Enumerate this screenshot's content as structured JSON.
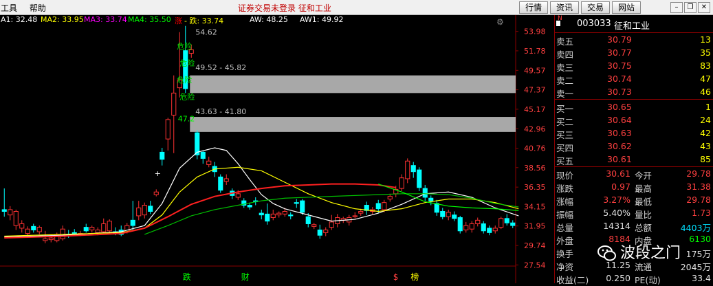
{
  "menu": [
    "工具",
    "帮助"
  ],
  "title": "证券交易未登录  征和工业",
  "buttons": [
    "行情",
    "资讯",
    "交易",
    "网站"
  ],
  "window_controls": [
    "minimize-icon",
    "restore-icon",
    "close-icon"
  ],
  "indicators": [
    {
      "text": "A1: 32.48",
      "color": "#ffffff"
    },
    {
      "text": "MA2: 33.95",
      "color": "#ffff00"
    },
    {
      "text": "MA3: 33.74",
      "color": "#ff00ff"
    },
    {
      "text": "MA4: 35.50",
      "color": "#00ff00"
    },
    {
      "text": "涨",
      "color": "#ff0000"
    },
    {
      "text": "- 跌: 33.74",
      "color": "#ffff00"
    },
    {
      "text": "AW: 48.25",
      "color": "#ffffff"
    },
    {
      "text": "AW1: 49.92",
      "color": "#ffffff"
    }
  ],
  "chart_data": {
    "type": "candlestick",
    "y_ticks": [
      53.98,
      51.78,
      49.57,
      47.37,
      45.17,
      42.96,
      40.76,
      38.56,
      36.35,
      34.15,
      31.95,
      29.74,
      27.54
    ],
    "ylim": [
      26.4,
      55.2
    ],
    "candles": [
      {
        "o": 33.8,
        "c": 33.6,
        "h": 36.2,
        "l": 33.0
      },
      {
        "o": 33.2,
        "c": 33.8,
        "h": 34.2,
        "l": 32.6
      },
      {
        "o": 32.0,
        "c": 33.6,
        "h": 33.8,
        "l": 31.5
      },
      {
        "o": 31.7,
        "c": 32.2,
        "h": 32.6,
        "l": 31.2
      },
      {
        "o": 31.1,
        "c": 31.6,
        "h": 31.9,
        "l": 30.6
      },
      {
        "o": 31.9,
        "c": 31.5,
        "h": 32.2,
        "l": 31.2
      },
      {
        "o": 31.3,
        "c": 31.8,
        "h": 32.0,
        "l": 31.0
      },
      {
        "o": 30.3,
        "c": 30.5,
        "h": 31.4,
        "l": 30.0
      },
      {
        "o": 30.4,
        "c": 30.6,
        "h": 31.0,
        "l": 30.1
      },
      {
        "o": 30.3,
        "c": 31.0,
        "h": 31.2,
        "l": 30.1
      },
      {
        "o": 30.5,
        "c": 31.6,
        "h": 32.0,
        "l": 30.3
      },
      {
        "o": 31.0,
        "c": 30.9,
        "h": 31.5,
        "l": 30.6
      },
      {
        "o": 31.2,
        "c": 31.0,
        "h": 31.6,
        "l": 30.9
      },
      {
        "o": 31.0,
        "c": 31.1,
        "h": 31.4,
        "l": 30.8
      },
      {
        "o": 31.8,
        "c": 31.4,
        "h": 32.2,
        "l": 31.2
      },
      {
        "o": 31.5,
        "c": 31.8,
        "h": 32.0,
        "l": 31.2
      },
      {
        "o": 31.2,
        "c": 31.5,
        "h": 31.8,
        "l": 30.9
      },
      {
        "o": 31.3,
        "c": 32.2,
        "h": 32.8,
        "l": 31.2
      },
      {
        "o": 31.4,
        "c": 32.5,
        "h": 32.7,
        "l": 31.1
      },
      {
        "o": 31.3,
        "c": 31.1,
        "h": 31.8,
        "l": 30.9
      },
      {
        "o": 31.5,
        "c": 31.0,
        "h": 32.0,
        "l": 30.8
      },
      {
        "o": 31.3,
        "c": 32.0,
        "h": 32.3,
        "l": 31.1
      },
      {
        "o": 32.6,
        "c": 32.0,
        "h": 34.8,
        "l": 31.4
      },
      {
        "o": 33.1,
        "c": 34.0,
        "h": 34.8,
        "l": 32.6
      },
      {
        "o": 33.2,
        "c": 34.3,
        "h": 34.6,
        "l": 32.8
      },
      {
        "o": 34.2,
        "c": 33.6,
        "h": 34.8,
        "l": 33.3
      },
      {
        "o": 35.5,
        "c": 35.8,
        "h": 36.1,
        "l": 35.3
      },
      {
        "o": 40.3,
        "c": 39.5,
        "h": 40.8,
        "l": 38.8
      },
      {
        "o": 41.8,
        "c": 44.0,
        "h": 44.2,
        "l": 40.5
      },
      {
        "o": 44.5,
        "c": 47.0,
        "h": 49.0,
        "l": 40.2
      },
      {
        "o": 47.6,
        "c": 48.5,
        "h": 53.9,
        "l": 46.5
      },
      {
        "o": 51.8,
        "c": 47.5,
        "h": 54.6,
        "l": 47.0
      },
      {
        "o": 51.5,
        "c": 51.9,
        "h": 52.5,
        "l": 51.0
      },
      {
        "o": 42.5,
        "c": 40.0,
        "h": 42.8,
        "l": 39.5
      },
      {
        "o": 40.3,
        "c": 39.6,
        "h": 40.5,
        "l": 39.0
      },
      {
        "o": 38.9,
        "c": 39.3,
        "h": 39.8,
        "l": 38.6
      },
      {
        "o": 38.7,
        "c": 38.1,
        "h": 39.2,
        "l": 37.5
      },
      {
        "o": 37.5,
        "c": 36.0,
        "h": 37.8,
        "l": 35.7
      },
      {
        "o": 37.0,
        "c": 37.3,
        "h": 37.8,
        "l": 36.6
      },
      {
        "o": 35.9,
        "c": 35.4,
        "h": 36.2,
        "l": 35.0
      },
      {
        "o": 35.2,
        "c": 35.6,
        "h": 36.0,
        "l": 34.9
      },
      {
        "o": 34.8,
        "c": 34.3,
        "h": 35.1,
        "l": 34.0
      },
      {
        "o": 34.3,
        "c": 34.1,
        "h": 34.6,
        "l": 33.8
      },
      {
        "o": 34.8,
        "c": 34.7,
        "h": 35.2,
        "l": 34.3
      },
      {
        "o": 33.4,
        "c": 33.2,
        "h": 33.8,
        "l": 32.7
      },
      {
        "o": 33.3,
        "c": 32.5,
        "h": 34.5,
        "l": 32.1
      },
      {
        "o": 32.9,
        "c": 33.3,
        "h": 33.8,
        "l": 32.6
      },
      {
        "o": 33.2,
        "c": 33.4,
        "h": 33.6,
        "l": 32.9
      },
      {
        "o": 33.3,
        "c": 33.6,
        "h": 34.0,
        "l": 33.0
      },
      {
        "o": 33.2,
        "c": 33.1,
        "h": 33.5,
        "l": 32.7
      },
      {
        "o": 34.6,
        "c": 34.5,
        "h": 35.0,
        "l": 34.0
      },
      {
        "o": 34.8,
        "c": 33.5,
        "h": 35.0,
        "l": 33.2
      },
      {
        "o": 33.0,
        "c": 32.2,
        "h": 33.4,
        "l": 31.8
      },
      {
        "o": 31.9,
        "c": 32.1,
        "h": 32.3,
        "l": 31.6
      },
      {
        "o": 31.5,
        "c": 30.9,
        "h": 32.1,
        "l": 30.5
      },
      {
        "o": 31.2,
        "c": 31.5,
        "h": 31.8,
        "l": 30.8
      },
      {
        "o": 31.8,
        "c": 32.4,
        "h": 33.2,
        "l": 31.5
      },
      {
        "o": 32.2,
        "c": 32.9,
        "h": 33.3,
        "l": 31.8
      },
      {
        "o": 32.6,
        "c": 32.8,
        "h": 33.0,
        "l": 32.3
      },
      {
        "o": 32.4,
        "c": 32.9,
        "h": 33.2,
        "l": 32.0
      },
      {
        "o": 33.0,
        "c": 33.1,
        "h": 33.5,
        "l": 32.8
      },
      {
        "o": 33.4,
        "c": 33.6,
        "h": 33.9,
        "l": 33.1
      },
      {
        "o": 34.3,
        "c": 33.7,
        "h": 34.7,
        "l": 33.2
      },
      {
        "o": 33.6,
        "c": 33.8,
        "h": 34.1,
        "l": 33.3
      },
      {
        "o": 34.5,
        "c": 33.9,
        "h": 34.9,
        "l": 33.4
      },
      {
        "o": 33.8,
        "c": 34.6,
        "h": 34.9,
        "l": 33.5
      },
      {
        "o": 35.0,
        "c": 35.3,
        "h": 35.6,
        "l": 34.7
      },
      {
        "o": 35.6,
        "c": 36.1,
        "h": 36.5,
        "l": 35.2
      },
      {
        "o": 36.2,
        "c": 37.4,
        "h": 37.8,
        "l": 35.9
      },
      {
        "o": 37.3,
        "c": 39.3,
        "h": 39.6,
        "l": 36.8
      },
      {
        "o": 38.8,
        "c": 38.1,
        "h": 39.2,
        "l": 37.4
      },
      {
        "o": 38.3,
        "c": 36.3,
        "h": 38.6,
        "l": 35.9
      },
      {
        "o": 36.2,
        "c": 35.2,
        "h": 36.6,
        "l": 34.8
      },
      {
        "o": 35.1,
        "c": 34.8,
        "h": 35.4,
        "l": 34.3
      },
      {
        "o": 34.5,
        "c": 33.5,
        "h": 34.9,
        "l": 33.1
      },
      {
        "o": 33.6,
        "c": 33.0,
        "h": 34.0,
        "l": 32.7
      },
      {
        "o": 33.0,
        "c": 33.5,
        "h": 33.8,
        "l": 32.6
      },
      {
        "o": 33.2,
        "c": 32.8,
        "h": 33.6,
        "l": 32.5
      },
      {
        "o": 32.9,
        "c": 31.4,
        "h": 33.1,
        "l": 31.1
      },
      {
        "o": 31.5,
        "c": 32.0,
        "h": 32.4,
        "l": 31.2
      },
      {
        "o": 31.6,
        "c": 32.2,
        "h": 32.5,
        "l": 31.2
      },
      {
        "o": 32.2,
        "c": 32.6,
        "h": 32.9,
        "l": 31.9
      },
      {
        "o": 32.2,
        "c": 31.4,
        "h": 32.5,
        "l": 31.1
      },
      {
        "o": 31.7,
        "c": 31.2,
        "h": 32.0,
        "l": 30.9
      },
      {
        "o": 31.4,
        "c": 31.7,
        "h": 32.0,
        "l": 31.1
      },
      {
        "o": 31.8,
        "c": 32.8,
        "h": 33.0,
        "l": 31.6
      },
      {
        "o": 32.8,
        "c": 32.3,
        "h": 33.3,
        "l": 32.0
      },
      {
        "o": 32.3,
        "c": 32.0,
        "h": 32.6,
        "l": 31.7
      }
    ],
    "series": [
      {
        "color": "#ffffff",
        "values": [
          [
            0,
            30.7
          ],
          [
            10,
            30.9
          ],
          [
            20,
            31.3
          ],
          [
            24,
            32.0
          ],
          [
            27,
            34.5
          ],
          [
            30,
            38.5
          ],
          [
            33,
            40.3
          ],
          [
            36,
            40.8
          ],
          [
            38,
            40.5
          ],
          [
            40,
            39.0
          ],
          [
            42,
            37.2
          ],
          [
            44,
            35.5
          ],
          [
            46,
            34.5
          ],
          [
            48,
            33.9
          ],
          [
            52,
            33.2
          ],
          [
            56,
            32.5
          ],
          [
            60,
            32.7
          ],
          [
            64,
            33.4
          ],
          [
            68,
            34.4
          ],
          [
            72,
            35.6
          ],
          [
            76,
            35.8
          ],
          [
            80,
            35.2
          ],
          [
            84,
            34.0
          ],
          [
            88,
            33.1
          ]
        ]
      },
      {
        "color": "#ffff00",
        "values": [
          [
            0,
            30.8
          ],
          [
            10,
            31.0
          ],
          [
            20,
            31.2
          ],
          [
            24,
            31.7
          ],
          [
            27,
            33.2
          ],
          [
            30,
            35.8
          ],
          [
            33,
            37.5
          ],
          [
            36,
            38.4
          ],
          [
            40,
            38.6
          ],
          [
            44,
            38.2
          ],
          [
            48,
            36.9
          ],
          [
            52,
            35.6
          ],
          [
            56,
            34.6
          ],
          [
            60,
            33.9
          ],
          [
            64,
            33.6
          ],
          [
            68,
            33.9
          ],
          [
            72,
            34.6
          ],
          [
            76,
            35.0
          ],
          [
            80,
            35.0
          ],
          [
            84,
            34.6
          ],
          [
            88,
            33.9
          ]
        ]
      },
      {
        "color": "#ff2020",
        "values": [
          [
            0,
            30.6
          ],
          [
            10,
            30.8
          ],
          [
            20,
            31.1
          ],
          [
            24,
            31.7
          ],
          [
            28,
            33.0
          ],
          [
            32,
            34.4
          ],
          [
            36,
            35.3
          ],
          [
            40,
            35.8
          ],
          [
            44,
            36.2
          ],
          [
            48,
            36.5
          ],
          [
            52,
            36.6
          ],
          [
            56,
            36.7
          ],
          [
            60,
            36.7
          ],
          [
            64,
            36.6
          ],
          [
            67,
            36.3
          ]
        ]
      },
      {
        "color": "#00c000",
        "values": [
          [
            24,
            31.0
          ],
          [
            28,
            32.0
          ],
          [
            32,
            33.1
          ],
          [
            36,
            33.8
          ],
          [
            40,
            34.3
          ],
          [
            44,
            34.8
          ],
          [
            48,
            35.1
          ],
          [
            52,
            35.2
          ],
          [
            56,
            35.3
          ],
          [
            60,
            35.4
          ],
          [
            64,
            35.5
          ],
          [
            68,
            35.6
          ],
          [
            72,
            35.6
          ],
          [
            76,
            35.5
          ],
          [
            80,
            35.1
          ],
          [
            84,
            34.5
          ],
          [
            88,
            34.1
          ]
        ]
      },
      {
        "color": "#00ff00",
        "values": [
          [
            64,
            36.7
          ],
          [
            68,
            35.8
          ],
          [
            72,
            34.7
          ],
          [
            76,
            34.2
          ],
          [
            80,
            34.0
          ],
          [
            84,
            33.9
          ],
          [
            88,
            33.7
          ]
        ]
      }
    ],
    "labels": [
      {
        "text": "54.62",
        "c": 32,
        "y": 53.6,
        "color": "#c0c0c0"
      },
      {
        "text": "49.52 - 45.82",
        "c": 32,
        "y": 49.6,
        "color": "#c0c0c0"
      },
      {
        "text": "43.63 - 41.80",
        "c": 32,
        "y": 44.6,
        "color": "#c0c0c0"
      },
      {
        "text": "47.2",
        "c": 29,
        "y": 43.8,
        "color": "#00ff00"
      },
      {
        "text": "+",
        "c": 25,
        "y": 37.6,
        "color": "#ffffff"
      }
    ],
    "bands": [
      {
        "from": 49.0,
        "to": 47.0,
        "c_start": 32
      },
      {
        "from": 44.3,
        "to": 42.6,
        "c_start": 32
      }
    ],
    "green_tags": [
      "危险",
      "危险",
      "危险",
      "危险"
    ],
    "bottom_markers": [
      {
        "text": "跌",
        "c": 31,
        "color": "#00ff00"
      },
      {
        "text": "财",
        "c": 41,
        "color": "#00ff00"
      },
      {
        "text": "$",
        "c": 67,
        "color": "#ff4040"
      },
      {
        "text": "榜",
        "c": 70,
        "color": "#ffff00"
      }
    ]
  },
  "stock": {
    "code": "003033",
    "name": "征和工业",
    "badge": "N"
  },
  "sell": [
    {
      "label": "卖五",
      "price": "30.79",
      "vol": "13"
    },
    {
      "label": "卖四",
      "price": "30.77",
      "vol": "35"
    },
    {
      "label": "卖三",
      "price": "30.75",
      "vol": "83"
    },
    {
      "label": "卖二",
      "price": "30.74",
      "vol": "47"
    },
    {
      "label": "卖一",
      "price": "30.73",
      "vol": "46"
    }
  ],
  "buy": [
    {
      "label": "买一",
      "price": "30.65",
      "vol": "1"
    },
    {
      "label": "买二",
      "price": "30.64",
      "vol": "24"
    },
    {
      "label": "买三",
      "price": "30.63",
      "vol": "42"
    },
    {
      "label": "买四",
      "price": "30.62",
      "vol": "43"
    },
    {
      "label": "买五",
      "price": "30.61",
      "vol": "85"
    }
  ],
  "stats": [
    {
      "l1": "现价",
      "v1": "30.61",
      "c1": "red",
      "l2": "今开",
      "v2": "29.78",
      "c2": "red"
    },
    {
      "l1": "涨跌",
      "v1": "0.97",
      "c1": "red",
      "l2": "最高",
      "v2": "31.38",
      "c2": "red"
    },
    {
      "l1": "涨幅",
      "v1": "3.27%",
      "c1": "red",
      "l2": "最低",
      "v2": "29.78",
      "c2": "red"
    },
    {
      "l1": "振幅",
      "v1": "5.40%",
      "c1": "white",
      "l2": "量比",
      "v2": "1.73",
      "c2": "red"
    },
    {
      "l1": "总量",
      "v1": "14314",
      "c1": "white",
      "l2": "总额",
      "v2": "4403万",
      "c2": "cyan"
    },
    {
      "l1": "外盘",
      "v1": "8184",
      "c1": "red",
      "l2": "内盘",
      "v2": "6130",
      "c2": "green"
    },
    {
      "l1": "换手",
      "v1": "",
      "c1": "white",
      "l2": "",
      "v2": "175万",
      "c2": "white"
    },
    {
      "l1": "净资",
      "v1": "11.25",
      "c1": "white",
      "l2": "流通",
      "v2": "2045万",
      "c2": "white"
    },
    {
      "l1": "收益(二)",
      "v1": "0.250",
      "c1": "white",
      "l2": "PE(动)",
      "v2": "33.4",
      "c2": "white"
    }
  ],
  "watermark": "波段之门"
}
